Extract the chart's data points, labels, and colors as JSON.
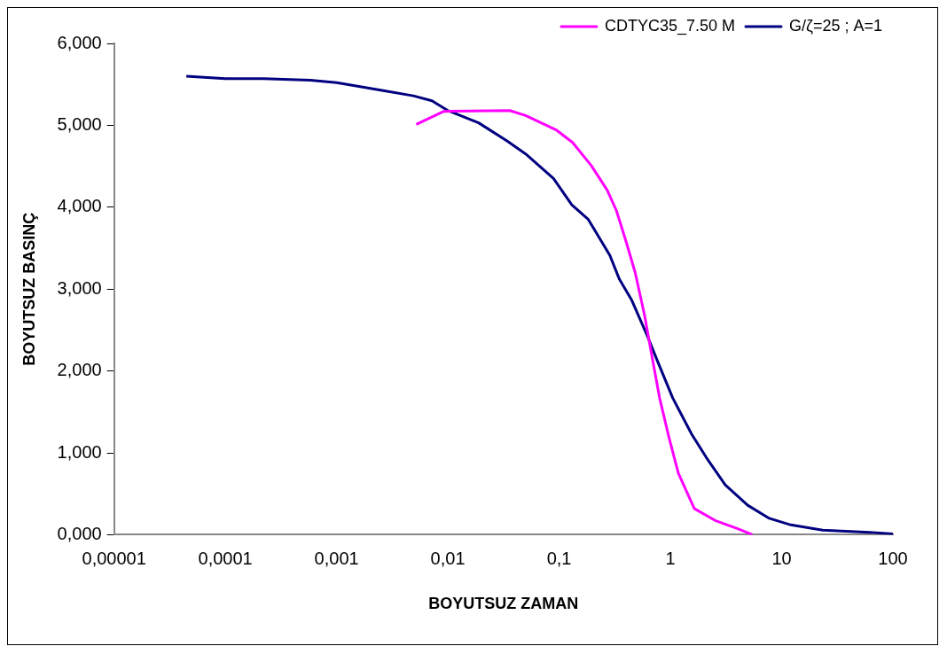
{
  "chart_data": {
    "type": "line",
    "xlabel": "BOYUTSUZ ZAMAN",
    "ylabel": "BOYUTSUZ BASINÇ",
    "log": "x",
    "grid": false,
    "legend": "top right",
    "marker": "none",
    "line_style": "solid",
    "xlim": [
      1e-05,
      100
    ],
    "xticks": [
      {
        "value": 1e-05,
        "label": "0,00001"
      },
      {
        "value": 0.0001,
        "label": "0,0001"
      },
      {
        "value": 0.001,
        "label": "0,001"
      },
      {
        "value": 0.01,
        "label": "0,01"
      },
      {
        "value": 0.1,
        "label": "0,1"
      },
      {
        "value": 1,
        "label": "1"
      },
      {
        "value": 10,
        "label": "10"
      },
      {
        "value": 100,
        "label": "100"
      }
    ],
    "ylim": [
      0,
      6
    ],
    "yticks": [
      {
        "value": 0,
        "label": "0,000"
      },
      {
        "value": 1,
        "label": "1,000"
      },
      {
        "value": 2,
        "label": "2,000"
      },
      {
        "value": 3,
        "label": "3,000"
      },
      {
        "value": 4,
        "label": "4,000"
      },
      {
        "value": 5,
        "label": "5,000"
      },
      {
        "value": 6,
        "label": "6,000"
      }
    ],
    "series": [
      {
        "name": "CDTYC35_7.50 M",
        "color": "#ff00ff",
        "x": [
          0.0052,
          0.0092,
          0.036,
          0.05,
          0.095,
          0.132,
          0.194,
          0.27,
          0.327,
          0.398,
          0.483,
          0.586,
          0.685,
          0.8,
          0.97,
          1.18,
          1.64,
          2.56,
          4.08,
          5.46
        ],
        "values": [
          5.01,
          5.17,
          5.18,
          5.12,
          4.94,
          4.79,
          4.51,
          4.21,
          3.96,
          3.59,
          3.2,
          2.68,
          2.17,
          1.67,
          1.19,
          0.75,
          0.32,
          0.17,
          0.07,
          0
        ]
      },
      {
        "name": "G/ζ=25 ; A=1",
        "color": "#000080",
        "x": [
          4.46e-05,
          0.0001,
          0.00022,
          0.00058,
          0.001,
          0.0015,
          0.0027,
          0.0049,
          0.0072,
          0.01,
          0.0189,
          0.034,
          0.05,
          0.089,
          0.13,
          0.183,
          0.286,
          0.348,
          0.447,
          0.62,
          0.755,
          1.05,
          1.55,
          2.11,
          3.11,
          4.95,
          7.74,
          12.1,
          23.4,
          61.7,
          100
        ],
        "values": [
          5.6,
          5.57,
          5.57,
          5.55,
          5.52,
          5.48,
          5.42,
          5.36,
          5.3,
          5.18,
          5.03,
          4.81,
          4.65,
          4.35,
          4.03,
          3.85,
          3.41,
          3.12,
          2.87,
          2.43,
          2.14,
          1.67,
          1.23,
          0.94,
          0.61,
          0.36,
          0.2,
          0.12,
          0.055,
          0.03,
          0.01
        ]
      }
    ]
  }
}
